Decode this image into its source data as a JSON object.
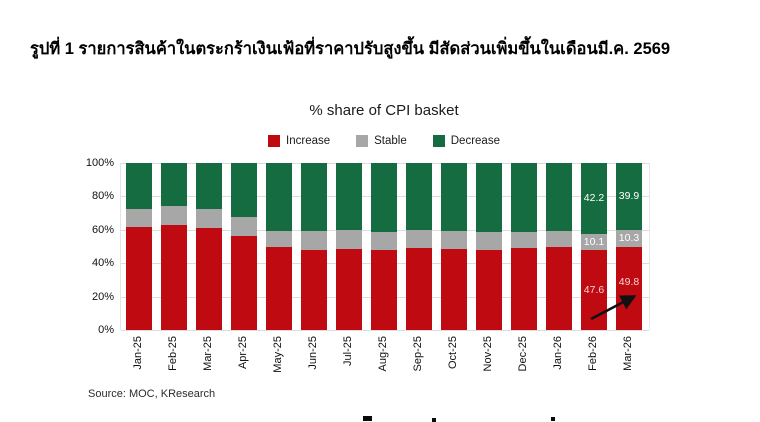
{
  "header": {
    "title": "รูปที่ 1 รายการสินค้าในตระกร้าเงินเฟ้อที่ราคาปรับสูงขึ้น มีสัดส่วนเพิ่มขึ้นในเดือนมี.ค. 2569"
  },
  "source_note": "Source: MOC, KResearch",
  "colors": {
    "increase": "#c00a11",
    "stable": "#a7a7a7",
    "decrease": "#156c40",
    "gridline": "#dcdcdc",
    "label_on_red": "#f6d3d3",
    "label_on_gray_green": "#ffffff",
    "arrow": "#111111"
  },
  "chart_data": {
    "type": "bar",
    "stacked": true,
    "title": "% share of CPI basket",
    "categories": [
      "Jan-25",
      "Feb-25",
      "Mar-25",
      "Apr-25",
      "May-25",
      "Jun-25",
      "Jul-25",
      "Aug-25",
      "Sep-25",
      "Oct-25",
      "Nov-25",
      "Dec-25",
      "Jan-26",
      "Feb-26",
      "Mar-26"
    ],
    "series": [
      {
        "name": "Increase",
        "color": "#c00a11",
        "values": [
          61.5,
          63.0,
          61.0,
          56.5,
          50.0,
          48.0,
          48.5,
          48.0,
          49.0,
          48.5,
          48.0,
          49.0,
          49.5,
          47.6,
          49.8
        ]
      },
      {
        "name": "Stable",
        "color": "#a7a7a7",
        "values": [
          11.0,
          11.0,
          11.5,
          11.0,
          9.5,
          11.0,
          11.5,
          10.5,
          11.0,
          11.0,
          10.5,
          9.5,
          9.5,
          10.1,
          10.3
        ]
      },
      {
        "name": "Decrease",
        "color": "#156c40",
        "values": [
          27.5,
          26.0,
          27.5,
          32.5,
          40.5,
          41.0,
          40.0,
          41.5,
          40.0,
          40.5,
          41.5,
          41.5,
          41.0,
          42.2,
          39.9
        ]
      }
    ],
    "labeled_categories": [
      "Feb-26",
      "Mar-26"
    ],
    "data_labels": {
      "Feb-26": {
        "Increase": "47.6",
        "Stable": "10.1",
        "Decrease": "42.2"
      },
      "Mar-26": {
        "Increase": "49.8",
        "Stable": "10.3",
        "Decrease": "39.9"
      }
    },
    "ylim": [
      0,
      100
    ],
    "yticks": [
      "0%",
      "20%",
      "40%",
      "60%",
      "80%",
      "100%"
    ],
    "grid": true,
    "legend_position": "top",
    "annotation": "black arrow pointing up-right toward the Mar-26 Increase value 49.8"
  }
}
